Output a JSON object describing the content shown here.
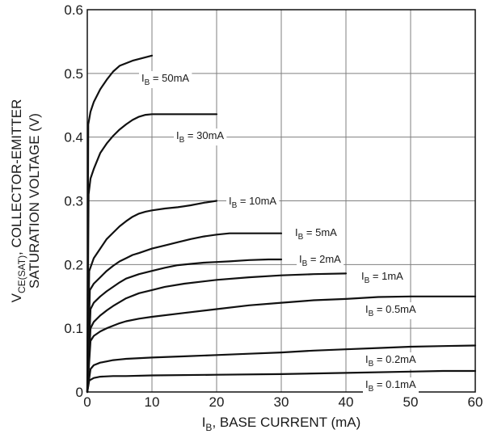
{
  "chart_data": {
    "type": "line",
    "xlabel": {
      "sym": "I",
      "sub": "B",
      "rest": ", BASE CURRENT (mA)"
    },
    "ylabel": {
      "line1_sym": "V",
      "line1_sub": "CE(SAT)",
      "line1_rest": ", COLLECTOR-EMITTER",
      "line2": "SATURATION VOLTAGE (V)"
    },
    "xlim": [
      0,
      60
    ],
    "ylim": [
      0,
      0.6
    ],
    "xticks": [
      0,
      10,
      20,
      30,
      40,
      50,
      60
    ],
    "yticks": [
      0,
      0.1,
      0.2,
      0.3,
      0.4,
      0.5,
      0.6
    ],
    "ytick_labels": [
      "0",
      "0.1",
      "0.2",
      "0.3",
      "0.4",
      "0.5",
      "0.6"
    ],
    "grid": true,
    "series": [
      {
        "name": "50mA",
        "label_sym": "I",
        "label_sub": "B",
        "label_rest": " = 50mA",
        "x": [
          0,
          0.15,
          0.5,
          1,
          2,
          3,
          4,
          5,
          7,
          10
        ],
        "y": [
          0,
          0.42,
          0.44,
          0.455,
          0.475,
          0.49,
          0.503,
          0.512,
          0.52,
          0.528
        ]
      },
      {
        "name": "30mA",
        "label_sym": "I",
        "label_sub": "B",
        "label_rest": " = 30mA",
        "x": [
          0,
          0.2,
          0.5,
          1,
          2,
          3,
          4,
          5,
          6,
          7,
          8,
          9,
          10,
          20
        ],
        "y": [
          0,
          0.31,
          0.335,
          0.35,
          0.375,
          0.39,
          0.402,
          0.412,
          0.42,
          0.427,
          0.432,
          0.435,
          0.436,
          0.436
        ]
      },
      {
        "name": "10mA",
        "label_sym": "I",
        "label_sub": "B",
        "label_rest": " = 10mA",
        "x": [
          0,
          0.3,
          1,
          2,
          3,
          4,
          5,
          6,
          7,
          8,
          9,
          10,
          12,
          14,
          16,
          18,
          20
        ],
        "y": [
          0,
          0.19,
          0.21,
          0.225,
          0.24,
          0.25,
          0.26,
          0.268,
          0.275,
          0.28,
          0.283,
          0.285,
          0.288,
          0.29,
          0.293,
          0.297,
          0.3
        ]
      },
      {
        "name": "5mA",
        "label_sym": "I",
        "label_sub": "B",
        "label_rest": " = 5mA",
        "x": [
          0,
          0.4,
          1,
          2,
          3,
          4,
          5,
          6,
          7,
          8,
          10,
          12,
          14,
          16,
          18,
          20,
          22,
          25,
          30
        ],
        "y": [
          0,
          0.16,
          0.17,
          0.18,
          0.19,
          0.198,
          0.205,
          0.21,
          0.215,
          0.218,
          0.225,
          0.23,
          0.235,
          0.24,
          0.244,
          0.247,
          0.249,
          0.249,
          0.249
        ]
      },
      {
        "name": "2mA",
        "label_sym": "I",
        "label_sub": "B",
        "label_rest": " = 2mA",
        "x": [
          0,
          0.5,
          1,
          2,
          3,
          4,
          5,
          6,
          8,
          10,
          12,
          14,
          16,
          18,
          20,
          22,
          25,
          28,
          30
        ],
        "y": [
          0,
          0.13,
          0.14,
          0.15,
          0.158,
          0.165,
          0.172,
          0.178,
          0.185,
          0.19,
          0.195,
          0.199,
          0.201,
          0.203,
          0.204,
          0.205,
          0.207,
          0.208,
          0.208
        ]
      },
      {
        "name": "1mA",
        "label_sym": "I",
        "label_sub": "B",
        "label_rest": " = 1mA",
        "x": [
          0,
          0.5,
          1,
          2,
          3,
          4,
          5,
          6,
          8,
          10,
          12,
          15,
          20,
          25,
          30,
          35,
          40
        ],
        "y": [
          0,
          0.1,
          0.11,
          0.12,
          0.128,
          0.135,
          0.141,
          0.147,
          0.155,
          0.16,
          0.165,
          0.17,
          0.176,
          0.18,
          0.183,
          0.185,
          0.186
        ]
      },
      {
        "name": "0.5mA",
        "label_sym": "I",
        "label_sub": "B",
        "label_rest": " = 0.5mA",
        "x": [
          0,
          0.5,
          1,
          2,
          3,
          4,
          5,
          6,
          8,
          10,
          15,
          20,
          25,
          30,
          35,
          40,
          45,
          50,
          55,
          60
        ],
        "y": [
          0,
          0.08,
          0.088,
          0.095,
          0.1,
          0.104,
          0.108,
          0.111,
          0.115,
          0.118,
          0.124,
          0.13,
          0.136,
          0.14,
          0.144,
          0.146,
          0.149,
          0.15,
          0.15,
          0.15
        ]
      },
      {
        "name": "0.2mA",
        "label_sym": "I",
        "label_sub": "B",
        "label_rest": " = 0.2mA",
        "x": [
          0,
          0.5,
          1,
          2,
          3,
          4,
          5,
          6,
          10,
          15,
          20,
          25,
          30,
          35,
          40,
          45,
          50,
          55,
          60
        ],
        "y": [
          0,
          0.036,
          0.042,
          0.046,
          0.048,
          0.05,
          0.051,
          0.052,
          0.054,
          0.056,
          0.058,
          0.06,
          0.062,
          0.065,
          0.067,
          0.069,
          0.071,
          0.072,
          0.073
        ]
      },
      {
        "name": "0.1mA",
        "label_sym": "I",
        "label_sub": "B",
        "label_rest": " = 0.1mA",
        "x": [
          0,
          0.3,
          1,
          2,
          4,
          6,
          10,
          20,
          30,
          40,
          50,
          55,
          60
        ],
        "y": [
          0,
          0.018,
          0.022,
          0.024,
          0.025,
          0.025,
          0.026,
          0.027,
          0.028,
          0.03,
          0.032,
          0.033,
          0.033
        ]
      }
    ]
  }
}
